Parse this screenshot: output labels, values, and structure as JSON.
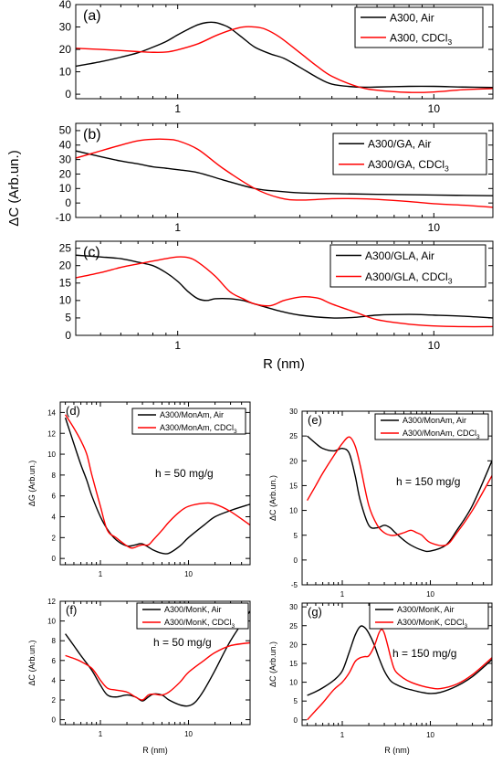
{
  "figure": {
    "shared_ylabel": "ΔC (Arb.un.)",
    "shared_xlabel": "R (nm)"
  },
  "colors": {
    "black": "#000000",
    "red": "#ff0000"
  },
  "chart_data": [
    {
      "id": "a",
      "panel_label": "(a)",
      "type": "line",
      "x_scale": "log",
      "xlim": [
        0.4,
        17
      ],
      "ylim": [
        -2,
        40
      ],
      "x_ticks": [
        1,
        10
      ],
      "x_tick_labels": [
        "1",
        "10"
      ],
      "y_ticks": [
        0,
        10,
        20,
        30,
        40
      ],
      "y_tick_labels": [
        "0",
        "10",
        "20",
        "30",
        "40"
      ],
      "series": [
        {
          "name": "A300, Air",
          "color": "black",
          "x": [
            0.4,
            0.5,
            0.6,
            0.7,
            0.8,
            0.9,
            1.0,
            1.1,
            1.2,
            1.3,
            1.4,
            1.5,
            1.6,
            1.8,
            2.0,
            2.3,
            2.6,
            3.0,
            3.5,
            4.0,
            5.0,
            6.0,
            8.0,
            10.0,
            13.0,
            17.0
          ],
          "y": [
            12.5,
            14.5,
            16.5,
            18.5,
            21,
            23.5,
            26.5,
            29,
            31,
            32,
            32,
            31,
            29.5,
            25,
            21,
            18,
            16,
            12,
            7.5,
            4.5,
            3.2,
            3.2,
            3.5,
            3.5,
            3.2,
            3
          ]
        },
        {
          "name": "A300, CDCl₃",
          "color": "red",
          "x": [
            0.4,
            0.5,
            0.6,
            0.7,
            0.8,
            0.9,
            1.0,
            1.2,
            1.4,
            1.6,
            1.8,
            2.0,
            2.2,
            2.5,
            3.0,
            3.5,
            4.0,
            5.0,
            6.0,
            8.0,
            10.0,
            13.0,
            17.0
          ],
          "y": [
            20.5,
            20,
            19.5,
            19,
            18.7,
            18.8,
            19.8,
            22.5,
            26,
            28.5,
            30,
            30,
            29,
            25.5,
            18.5,
            12.5,
            8,
            3.5,
            1.8,
            0.8,
            1,
            2,
            2.5
          ]
        }
      ]
    },
    {
      "id": "b",
      "panel_label": "(b)",
      "type": "line",
      "x_scale": "log",
      "xlim": [
        0.4,
        17
      ],
      "ylim": [
        -10,
        55
      ],
      "x_ticks": [
        1,
        10
      ],
      "x_tick_labels": [
        "1",
        "10"
      ],
      "y_ticks": [
        -10,
        0,
        10,
        20,
        30,
        40,
        50
      ],
      "y_tick_labels": [
        "-10",
        "0",
        "10",
        "20",
        "30",
        "40",
        "50"
      ],
      "series": [
        {
          "name": "A300/GA, Air",
          "color": "black",
          "x": [
            0.4,
            0.5,
            0.6,
            0.7,
            0.8,
            0.9,
            1.0,
            1.2,
            1.5,
            2.0,
            2.5,
            3.0,
            4.0,
            6.0,
            10.0,
            17.0
          ],
          "y": [
            36,
            32,
            29,
            27,
            25,
            24,
            23,
            21,
            16,
            10,
            8,
            7,
            6.5,
            6,
            5.5,
            5
          ]
        },
        {
          "name": "A300/GA, CDCl₃",
          "color": "red",
          "x": [
            0.4,
            0.5,
            0.6,
            0.7,
            0.8,
            0.9,
            1.0,
            1.2,
            1.5,
            2.0,
            2.5,
            3.0,
            4.0,
            5.0,
            6.0,
            8.0,
            10.0,
            13.0,
            17.0
          ],
          "y": [
            31,
            36,
            40,
            43,
            44,
            44,
            43,
            37,
            24,
            10,
            3.5,
            2,
            3,
            3,
            2.5,
            1,
            -0.5,
            -1.5,
            -3
          ]
        }
      ]
    },
    {
      "id": "c",
      "panel_label": "(c)",
      "type": "line",
      "x_scale": "log",
      "xlim": [
        0.4,
        17
      ],
      "ylim": [
        0,
        27
      ],
      "x_ticks": [
        1,
        10
      ],
      "x_tick_labels": [
        "1",
        "10"
      ],
      "y_ticks": [
        0,
        5,
        10,
        15,
        20,
        25
      ],
      "y_tick_labels": [
        "0",
        "5",
        "10",
        "15",
        "20",
        "25"
      ],
      "series": [
        {
          "name": "A300/GLA, Air",
          "color": "black",
          "x": [
            0.4,
            0.5,
            0.6,
            0.7,
            0.8,
            0.9,
            1.0,
            1.1,
            1.2,
            1.3,
            1.4,
            1.6,
            1.8,
            2.0,
            2.5,
            3.0,
            4.0,
            5.0,
            6.0,
            8.0,
            10.0,
            13.0,
            17.0
          ],
          "y": [
            23,
            22.5,
            22,
            21,
            20,
            18,
            15.5,
            12.5,
            10.5,
            10,
            10.5,
            10.5,
            10,
            9,
            7,
            5.8,
            5,
            5.2,
            5.8,
            6,
            5.8,
            5.5,
            5
          ]
        },
        {
          "name": "A300/GLA, CDCl₃",
          "color": "red",
          "x": [
            0.4,
            0.5,
            0.6,
            0.7,
            0.8,
            0.9,
            1.0,
            1.1,
            1.2,
            1.4,
            1.6,
            1.8,
            2.0,
            2.3,
            2.6,
            3.0,
            3.3,
            3.6,
            4.0,
            5.0,
            6.0,
            8.0,
            10.0,
            13.0,
            17.0
          ],
          "y": [
            16.5,
            18,
            19.5,
            20.5,
            21.3,
            22,
            22.5,
            22.3,
            21,
            17,
            12.5,
            10.5,
            9,
            8.5,
            10,
            11,
            11,
            10.5,
            9,
            6.5,
            4.5,
            3.2,
            2.7,
            2.5,
            2.5
          ]
        }
      ]
    },
    {
      "id": "d",
      "panel_label": "(d)",
      "annotation": "h = 50 mg/g",
      "ylabel": "ΔG (Arb.un.)",
      "type": "line",
      "x_scale": "log",
      "xlim": [
        0.35,
        50
      ],
      "ylim": [
        -0.6,
        15
      ],
      "x_ticks": [
        1,
        10
      ],
      "x_tick_labels": [
        "1",
        "10"
      ],
      "y_ticks": [
        0,
        2,
        4,
        6,
        8,
        10,
        12,
        14
      ],
      "y_tick_labels": [
        "0",
        "2",
        "4",
        "6",
        "8",
        "10",
        "12",
        "14"
      ],
      "series": [
        {
          "name": "A300/MonAm, Air",
          "color": "black",
          "x": [
            0.4,
            0.5,
            0.6,
            0.7,
            0.8,
            1.0,
            1.2,
            1.5,
            2.0,
            2.5,
            3.0,
            4.0,
            5.0,
            6.0,
            8.0,
            10.0,
            15.0,
            20.0,
            30.0,
            50.0
          ],
          "y": [
            13.5,
            11,
            9,
            7.5,
            6,
            4,
            2.8,
            1.8,
            1.2,
            1.3,
            1.4,
            0.8,
            0.5,
            0.5,
            1.2,
            2,
            3.2,
            4,
            4.6,
            5.2
          ]
        },
        {
          "name": "A300/MonAm, CDCl₃",
          "color": "red",
          "x": [
            0.4,
            0.5,
            0.6,
            0.7,
            0.8,
            1.0,
            1.2,
            1.5,
            2.0,
            2.3,
            2.7,
            3.0,
            3.5,
            4.0,
            5.0,
            6.0,
            8.0,
            10.0,
            15.0,
            20.0,
            30.0,
            50.0
          ],
          "y": [
            13.8,
            12.5,
            11.3,
            10,
            8,
            5,
            2.7,
            2,
            1.2,
            1,
            1.2,
            1.3,
            1.3,
            1.8,
            2.7,
            3.5,
            4.5,
            5,
            5.3,
            5.2,
            4.5,
            3.2
          ]
        }
      ]
    },
    {
      "id": "e",
      "panel_label": "(e)",
      "annotation": "h = 150 mg/g",
      "ylabel": "ΔC (Arb.un.)",
      "type": "line",
      "x_scale": "log",
      "xlim": [
        0.35,
        50
      ],
      "ylim": [
        -5,
        30
      ],
      "x_ticks": [
        1,
        10
      ],
      "x_tick_labels": [
        "1",
        "10"
      ],
      "y_ticks": [
        -5,
        0,
        5,
        10,
        15,
        20,
        25,
        30
      ],
      "y_tick_labels": [
        "-5",
        "0",
        "5",
        "10",
        "15",
        "20",
        "25",
        "30"
      ],
      "series": [
        {
          "name": "A300/MonAm, Air",
          "color": "black",
          "x": [
            0.4,
            0.5,
            0.6,
            0.8,
            1.0,
            1.2,
            1.4,
            1.6,
            2.0,
            2.5,
            3.0,
            3.5,
            4.0,
            5.0,
            6.0,
            8.0,
            10.0,
            15.0,
            20.0,
            30.0,
            50.0
          ],
          "y": [
            25,
            23.5,
            22.5,
            22,
            22.5,
            21.5,
            17,
            12,
            7,
            6.5,
            7,
            6.5,
            5.5,
            4,
            3,
            2,
            1.8,
            3,
            6,
            11,
            20
          ]
        },
        {
          "name": "A300/MonAm, CDCl₃",
          "color": "red",
          "x": [
            0.4,
            0.5,
            0.6,
            0.8,
            1.0,
            1.2,
            1.4,
            1.6,
            2.0,
            2.5,
            3.0,
            3.5,
            4.0,
            5.0,
            6.0,
            7.0,
            8.0,
            10.0,
            15.0,
            20.0,
            30.0,
            50.0
          ],
          "y": [
            12,
            15,
            17.5,
            21,
            23.5,
            24.8,
            23,
            19,
            11,
            7,
            5.5,
            5,
            5,
            5.5,
            6,
            5.5,
            5,
            3.5,
            3,
            5.5,
            10,
            17
          ]
        }
      ]
    },
    {
      "id": "f",
      "panel_label": "(f)",
      "annotation": "h = 50 mg/g",
      "ylabel": "ΔC (Arb.un.)",
      "xlabel": "R (nm)",
      "type": "line",
      "x_scale": "log",
      "xlim": [
        0.35,
        50
      ],
      "ylim": [
        -0.5,
        12
      ],
      "x_ticks": [
        1,
        10
      ],
      "x_tick_labels": [
        "1",
        "10"
      ],
      "y_ticks": [
        0,
        2,
        4,
        6,
        8,
        10,
        12
      ],
      "y_tick_labels": [
        "0",
        "2",
        "4",
        "6",
        "8",
        "10",
        "12"
      ],
      "series": [
        {
          "name": "A300/MonK, Air",
          "color": "black",
          "x": [
            0.4,
            0.5,
            0.6,
            0.8,
            1.0,
            1.2,
            1.5,
            2.0,
            2.5,
            3.0,
            3.5,
            4.0,
            5.0,
            6.0,
            8.0,
            10.0,
            12.0,
            15.0,
            20.0,
            30.0,
            50.0
          ],
          "y": [
            8.7,
            7.5,
            6.5,
            5,
            3.5,
            2.5,
            2.3,
            2.5,
            2.3,
            1.9,
            2.3,
            2.6,
            2.5,
            2,
            1.5,
            1.4,
            1.8,
            3,
            5,
            8,
            11
          ]
        },
        {
          "name": "A300/MonK, CDCl₃",
          "color": "red",
          "x": [
            0.4,
            0.5,
            0.6,
            0.8,
            1.0,
            1.2,
            1.5,
            2.0,
            2.5,
            3.0,
            3.5,
            4.0,
            5.0,
            6.0,
            8.0,
            10.0,
            15.0,
            20.0,
            30.0,
            50.0
          ],
          "y": [
            6.5,
            6.2,
            5.9,
            5.2,
            4,
            3.2,
            3,
            2.8,
            2.3,
            2,
            2.5,
            2.6,
            2.5,
            2.8,
            3.8,
            4.8,
            6,
            6.8,
            7.5,
            7.8
          ]
        }
      ]
    },
    {
      "id": "g",
      "panel_label": "(g)",
      "annotation": "h = 150 mg/g",
      "ylabel": "ΔC (Arb.un.)",
      "xlabel": "R (nm)",
      "type": "line",
      "x_scale": "log",
      "xlim": [
        0.35,
        50
      ],
      "ylim": [
        -1.5,
        31
      ],
      "x_ticks": [
        1,
        10
      ],
      "x_tick_labels": [
        "1",
        "10"
      ],
      "y_ticks": [
        0,
        5,
        10,
        15,
        20,
        25,
        30
      ],
      "y_tick_labels": [
        "0",
        "5",
        "10",
        "15",
        "20",
        "25",
        "30"
      ],
      "series": [
        {
          "name": "A300/MonK, Air",
          "color": "black",
          "x": [
            0.4,
            0.5,
            0.6,
            0.8,
            1.0,
            1.2,
            1.4,
            1.6,
            1.8,
            2.0,
            2.3,
            2.6,
            3.0,
            3.5,
            4.0,
            5.0,
            6.0,
            8.0,
            10.0,
            13.0,
            20.0,
            30.0,
            50.0
          ],
          "y": [
            6.5,
            7.5,
            8.5,
            10.5,
            13,
            18,
            22.5,
            24.8,
            24.5,
            23,
            20,
            16.5,
            13,
            10.5,
            9.5,
            8.5,
            8,
            7.3,
            7,
            7.3,
            9,
            11.5,
            16
          ]
        },
        {
          "name": "A300/MonK, CDCl₃",
          "color": "red",
          "x": [
            0.4,
            0.5,
            0.6,
            0.8,
            1.0,
            1.2,
            1.4,
            1.6,
            1.8,
            2.0,
            2.3,
            2.6,
            2.8,
            3.0,
            3.3,
            3.6,
            4.0,
            5.0,
            6.0,
            8.0,
            10.0,
            13.0,
            20.0,
            30.0,
            50.0
          ],
          "y": [
            0,
            2.5,
            4.5,
            8,
            10,
            12.5,
            15.5,
            16.5,
            16.8,
            17,
            19.5,
            23,
            24,
            23,
            19.5,
            16,
            13,
            11,
            10,
            9,
            8.5,
            8.3,
            9.5,
            12,
            16.5
          ]
        }
      ]
    }
  ]
}
